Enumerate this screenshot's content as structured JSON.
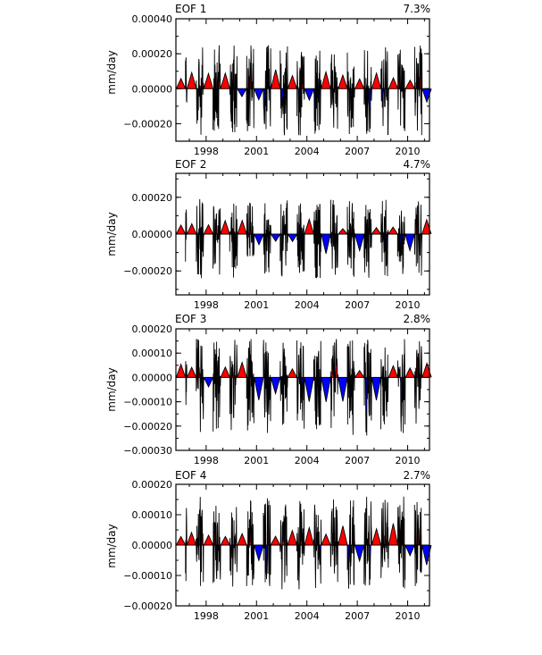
{
  "chart_data": [
    {
      "type": "area",
      "title": "EOF 1",
      "variance": "7.3%",
      "ylabel": "mm/day",
      "ylim": [
        -0.0003,
        0.0004
      ],
      "yticks": [
        -0.0002,
        0.0,
        0.0002,
        0.0004
      ],
      "ytick_labels": [
        "−0.00020",
        "0.00000",
        "0.00020",
        "0.00040"
      ],
      "xlim": [
        1996.2,
        2011.3
      ],
      "xticks": [
        1998,
        2001,
        2004,
        2007,
        2010
      ],
      "xtick_labels": [
        "1998",
        "2001",
        "2004",
        "2007",
        "2010"
      ],
      "positive_color": "#ff0000",
      "negative_color": "#0000ff",
      "amplitude_pos": 0.00025,
      "amplitude_neg": 0.00027,
      "seed": 11
    },
    {
      "type": "area",
      "title": "EOF 2",
      "variance": "4.7%",
      "ylabel": "mm/day",
      "ylim": [
        -0.00033,
        0.00033
      ],
      "yticks": [
        -0.0002,
        0.0,
        0.0002
      ],
      "ytick_labels": [
        "−0.00020",
        "0.00000",
        "0.00020"
      ],
      "xlim": [
        1996.2,
        2011.3
      ],
      "xticks": [
        1998,
        2001,
        2004,
        2007,
        2010
      ],
      "xtick_labels": [
        "1998",
        "2001",
        "2004",
        "2007",
        "2010"
      ],
      "positive_color": "#ff0000",
      "negative_color": "#0000ff",
      "amplitude_pos": 0.00019,
      "amplitude_neg": 0.00024,
      "seed": 23
    },
    {
      "type": "area",
      "title": "EOF 3",
      "variance": "2.8%",
      "ylabel": "mm/day",
      "ylim": [
        -0.0003,
        0.0002
      ],
      "yticks": [
        -0.0003,
        -0.0002,
        -0.0001,
        0.0,
        0.0001,
        0.0002
      ],
      "ytick_labels": [
        "−0.00030",
        "−0.00020",
        "−0.00010",
        "0.00000",
        "0.00010",
        "0.00020"
      ],
      "xlim": [
        1996.2,
        2011.3
      ],
      "xticks": [
        1998,
        2001,
        2004,
        2007,
        2010
      ],
      "xtick_labels": [
        "1998",
        "2001",
        "2004",
        "2007",
        "2010"
      ],
      "positive_color": "#ff0000",
      "negative_color": "#0000ff",
      "amplitude_pos": 0.00016,
      "amplitude_neg": 0.00024,
      "seed": 37
    },
    {
      "type": "area",
      "title": "EOF 4",
      "variance": "2.7%",
      "ylabel": "mm/day",
      "ylim": [
        -0.0002,
        0.0002
      ],
      "yticks": [
        -0.0002,
        -0.0001,
        0.0,
        0.0001,
        0.0002
      ],
      "ytick_labels": [
        "−0.00020",
        "−0.00010",
        "0.00000",
        "0.00010",
        "0.00020"
      ],
      "xlim": [
        1996.2,
        2011.3
      ],
      "xticks": [
        1998,
        2001,
        2004,
        2007,
        2010
      ],
      "xtick_labels": [
        "1998",
        "2001",
        "2004",
        "2007",
        "2010"
      ],
      "positive_color": "#ff0000",
      "negative_color": "#0000ff",
      "amplitude_pos": 0.00016,
      "amplitude_neg": 0.00015,
      "seed": 53
    }
  ]
}
